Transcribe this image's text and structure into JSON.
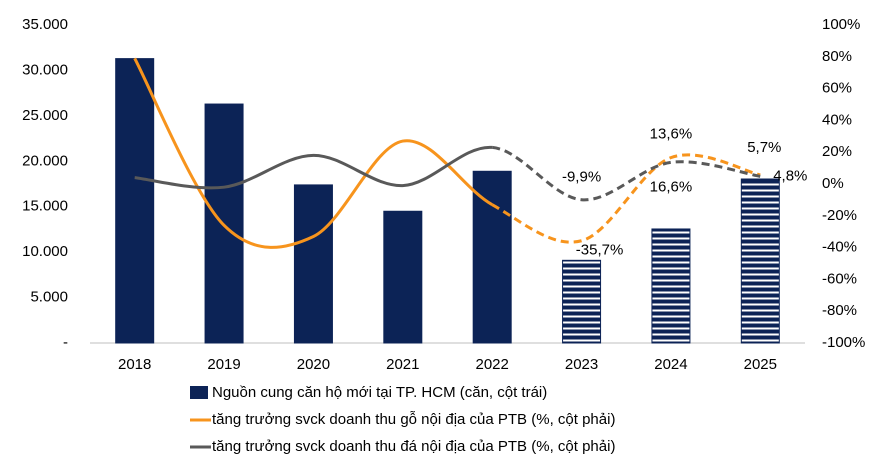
{
  "chart_data": {
    "type": "bar-line",
    "categories": [
      "2018",
      "2019",
      "2020",
      "2021",
      "2022",
      "2023",
      "2024",
      "2025"
    ],
    "ylim": [
      0,
      35000
    ],
    "yticks": [
      {
        "value": 0,
        "label": "-"
      },
      {
        "value": 5000,
        "label": "5.000"
      },
      {
        "value": 10000,
        "label": "10.000"
      },
      {
        "value": 15000,
        "label": "15.000"
      },
      {
        "value": 20000,
        "label": "20.000"
      },
      {
        "value": 25000,
        "label": "25.000"
      },
      {
        "value": 30000,
        "label": "30.000"
      },
      {
        "value": 35000,
        "label": "35.000"
      }
    ],
    "y2lim": [
      -100,
      100
    ],
    "y2ticks": [
      {
        "value": -100,
        "label": "-100%"
      },
      {
        "value": -80,
        "label": "-80%"
      },
      {
        "value": -60,
        "label": "-60%"
      },
      {
        "value": -40,
        "label": "-40%"
      },
      {
        "value": -20,
        "label": "-20%"
      },
      {
        "value": 0,
        "label": "0%"
      },
      {
        "value": 20,
        "label": "20%"
      },
      {
        "value": 40,
        "label": "40%"
      },
      {
        "value": 60,
        "label": "60%"
      },
      {
        "value": 80,
        "label": "80%"
      },
      {
        "value": 100,
        "label": "100%"
      }
    ],
    "series": [
      {
        "name": "Nguồn cung căn hộ mới tại TP. HCM (căn, cột trái)",
        "type": "bar",
        "color": "#0c2356",
        "values": [
          31300,
          26300,
          17400,
          14500,
          18900,
          9100,
          12550,
          18050
        ],
        "pattern": [
          "solid",
          "solid",
          "solid",
          "solid",
          "solid",
          "striped",
          "striped",
          "striped"
        ]
      },
      {
        "name": "tăng trưởng svck doanh thu gỗ nội địa của PTB (%, cột phải)",
        "type": "line",
        "axis": "y2",
        "color": "#f7941d",
        "values": [
          79,
          -26,
          -33,
          27,
          -13,
          -35.7,
          16.6,
          5.7
        ],
        "value_labels": [
          null,
          null,
          null,
          null,
          null,
          "-35,7%",
          "16,6%",
          "5,7%"
        ],
        "dash": [
          false,
          false,
          false,
          false,
          false,
          true,
          true,
          true
        ]
      },
      {
        "name": "tăng trưởng svck doanh thu đá nội địa của PTB (%, cột phải)",
        "type": "line",
        "axis": "y2",
        "color": "#595959",
        "values": [
          4,
          -2,
          18,
          -1,
          23,
          -9.9,
          13.6,
          4.8
        ],
        "value_labels": [
          null,
          null,
          null,
          null,
          null,
          "-9,9%",
          "13,6%",
          "4,8%"
        ],
        "dash": [
          false,
          false,
          false,
          false,
          false,
          true,
          true,
          true
        ]
      }
    ]
  }
}
